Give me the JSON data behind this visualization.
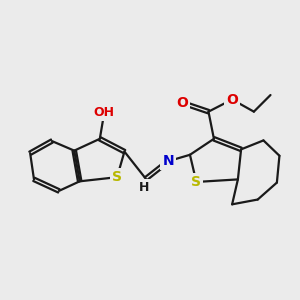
{
  "bg_color": "#ebebeb",
  "bond_color": "#1a1a1a",
  "bond_width": 1.6,
  "dbo": 0.055,
  "atom_colors": {
    "S": "#b8b800",
    "N": "#0000cc",
    "O": "#dd0000",
    "C": "#1a1a1a",
    "H": "#1a1a1a"
  },
  "fs": 10
}
